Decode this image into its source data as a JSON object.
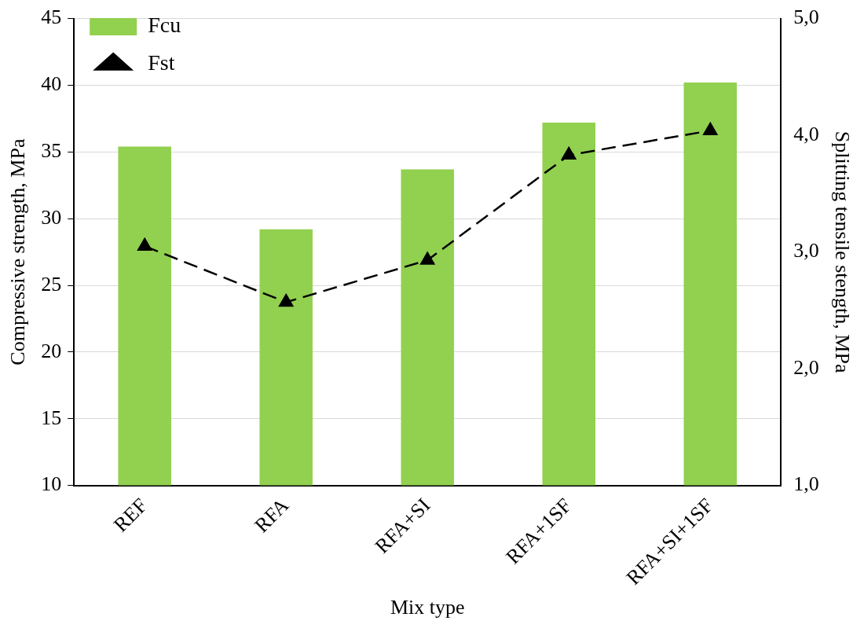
{
  "chart_data": {
    "type": "bar",
    "xlabel": "Mix type",
    "ylabel": "Compressive strength, MPa",
    "y2label": "Splitting tensile stength, MPa",
    "categories": [
      "REF",
      "RFA",
      "RFA+SI",
      "RFA+1SF",
      "RFA+SI+1SF"
    ],
    "series": [
      {
        "name": "Fcu",
        "color": "#92d050",
        "values": [
          35.4,
          29.2,
          33.7,
          37.2,
          40.2
        ]
      },
      {
        "name": "Fst",
        "type": "line",
        "axis": "y2",
        "color": "#000000",
        "marker": "triangle",
        "line_style": "dashed",
        "values": [
          3.05,
          2.57,
          2.93,
          3.83,
          4.04
        ]
      }
    ],
    "ylim": [
      10,
      45
    ],
    "yticks": [
      10,
      15,
      20,
      25,
      30,
      35,
      40,
      45
    ],
    "y2lim": [
      1,
      5
    ],
    "y2ticks": [
      {
        "value": 1,
        "label": "1,0"
      },
      {
        "value": 2,
        "label": "2,0"
      },
      {
        "value": 3,
        "label": "3,0"
      },
      {
        "value": 4,
        "label": "4,0"
      },
      {
        "value": 5,
        "label": "5,0"
      }
    ],
    "grid": "y",
    "legend": "top left"
  }
}
